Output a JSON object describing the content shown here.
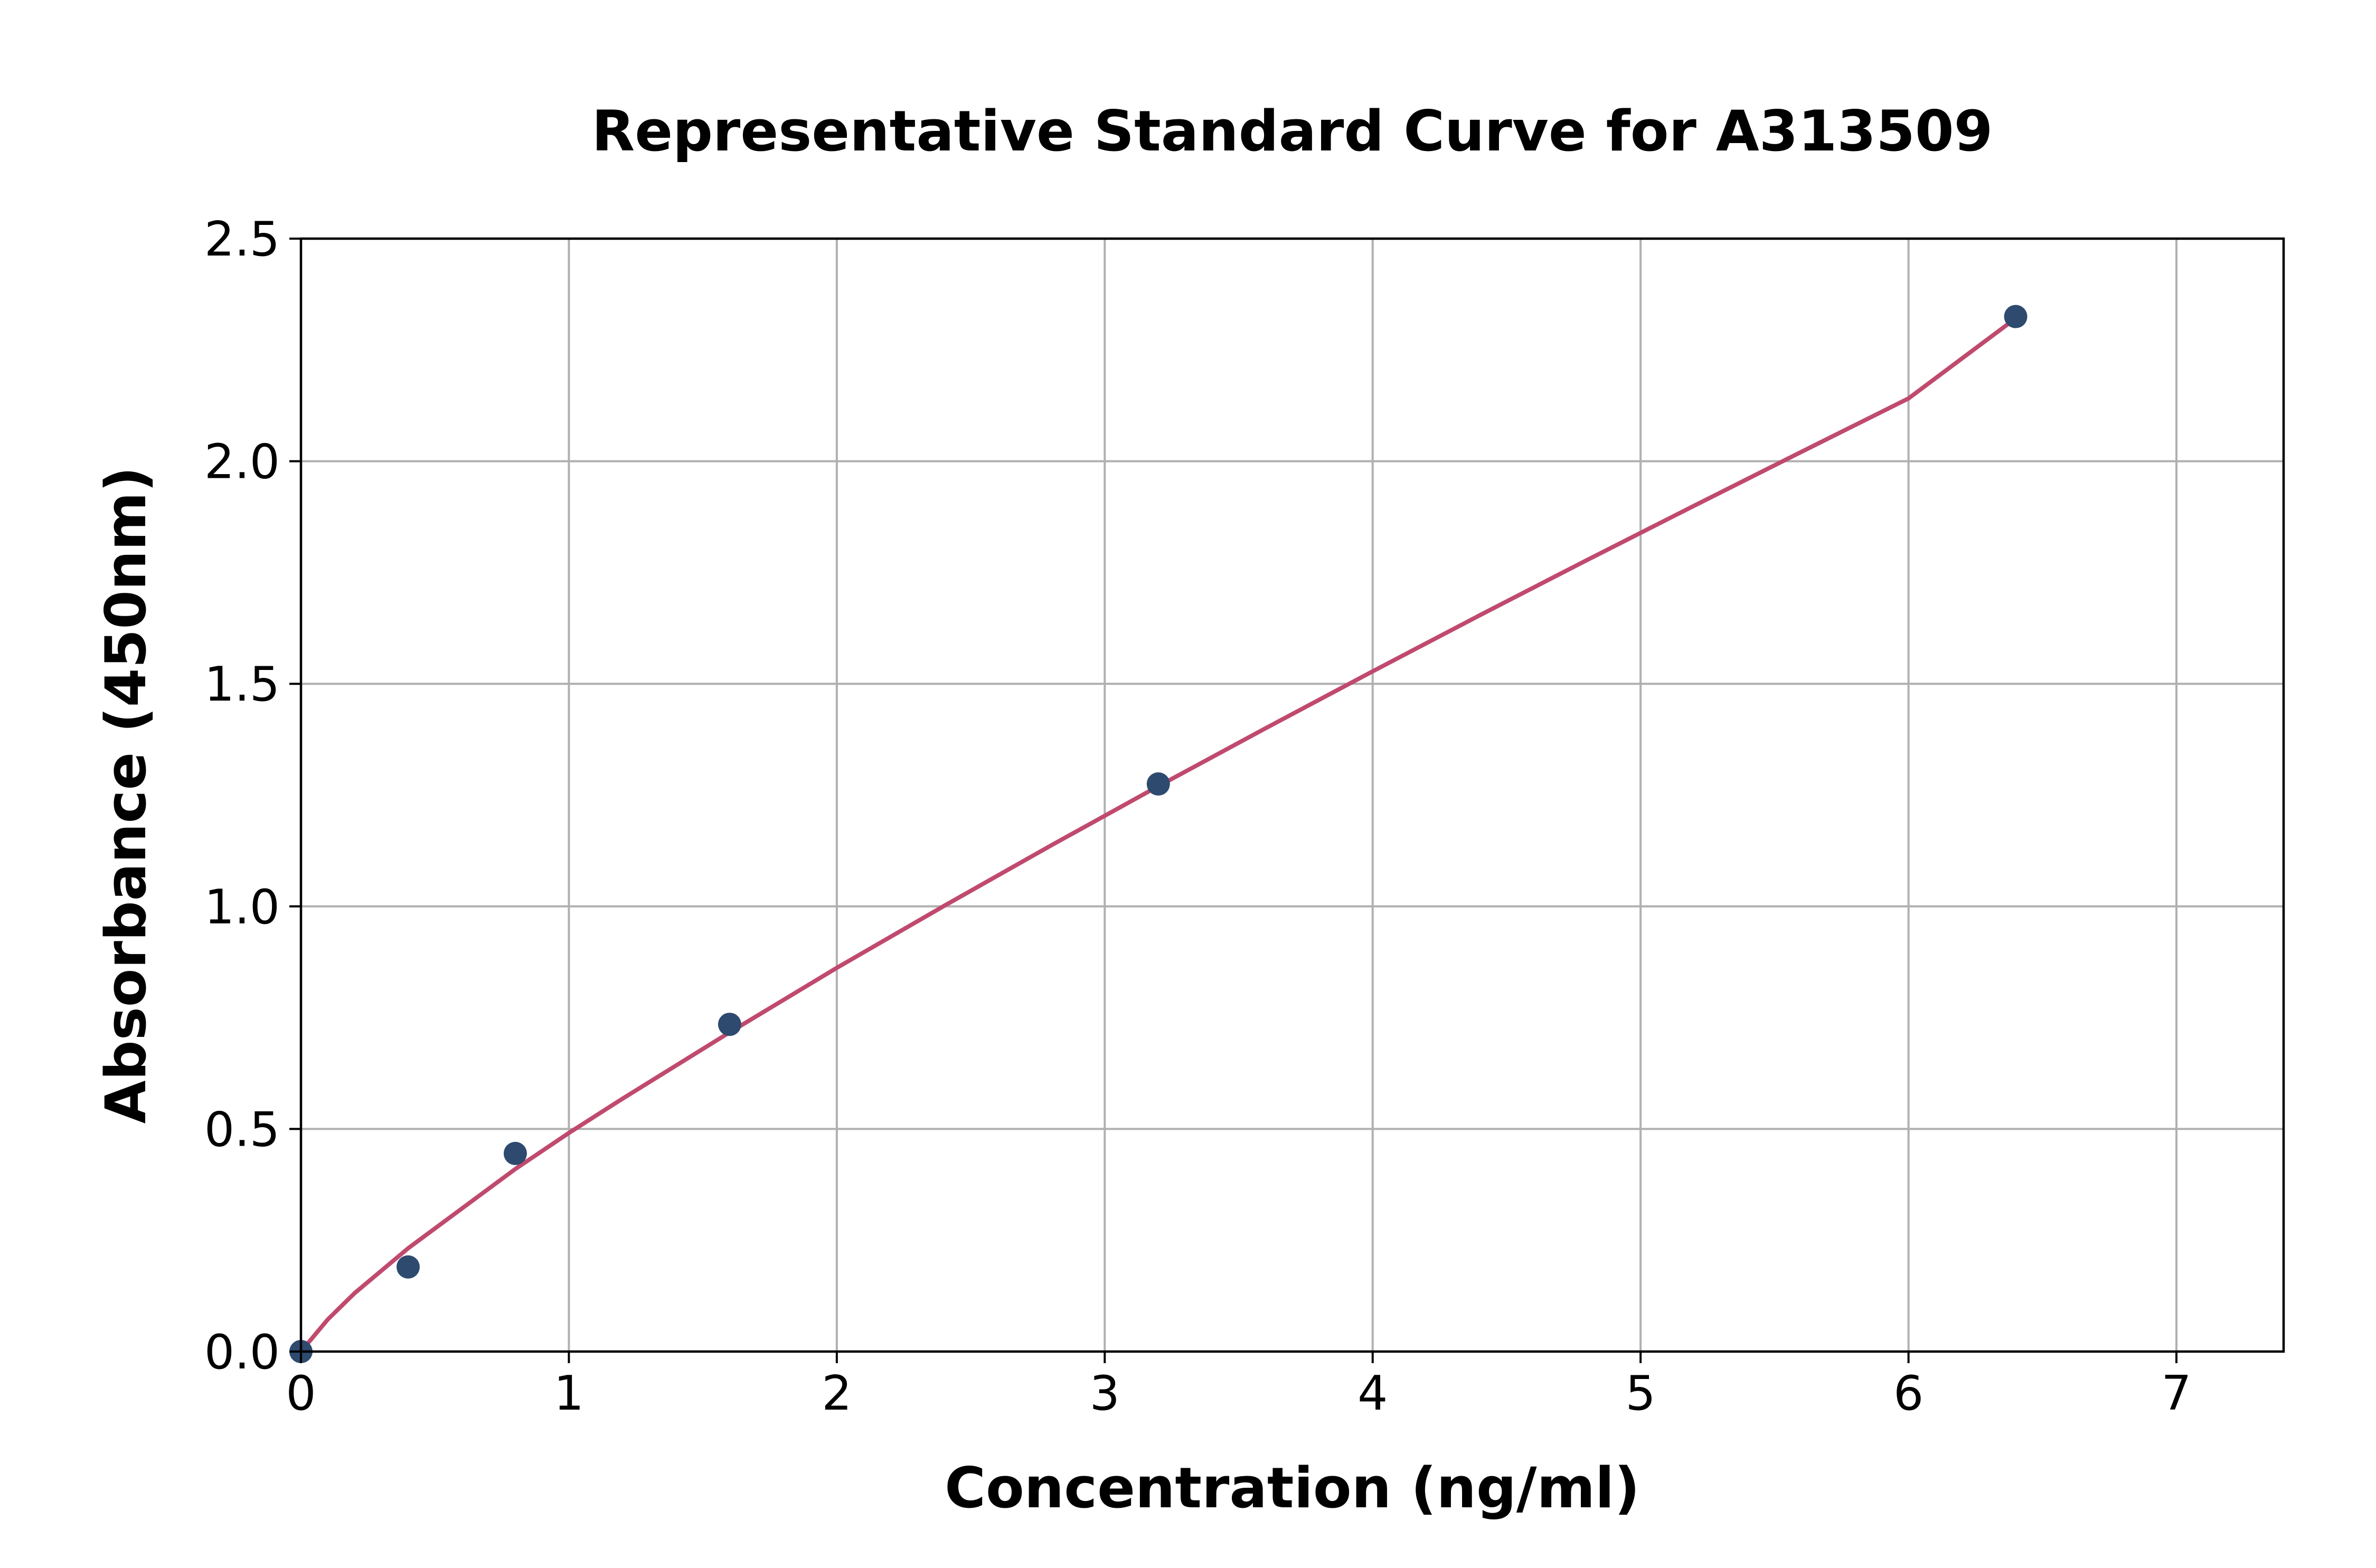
{
  "chart_data": {
    "type": "scatter",
    "title": "Representative Standard Curve for A313509",
    "xlabel": "Concentration (ng/ml)",
    "ylabel": "Absorbance (450nm)",
    "xlim": [
      0,
      7.4
    ],
    "ylim": [
      0,
      2.5
    ],
    "xticks": [
      0,
      1,
      2,
      3,
      4,
      5,
      6,
      7
    ],
    "xtick_labels": [
      "0",
      "1",
      "2",
      "3",
      "4",
      "5",
      "6",
      "7"
    ],
    "yticks": [
      0,
      0.5,
      1.0,
      1.5,
      2.0,
      2.5
    ],
    "ytick_labels": [
      "0.0",
      "0.5",
      "1.0",
      "1.5",
      "2.0",
      "2.5"
    ],
    "grid": true,
    "series": [
      {
        "kind": "points",
        "x": [
          0,
          0.4,
          0.8,
          1.6,
          3.2,
          6.4
        ],
        "y": [
          0.0,
          0.19,
          0.445,
          0.735,
          1.275,
          2.325
        ],
        "color": "#2e4a6e"
      },
      {
        "kind": "fit",
        "x": [
          0,
          0.1,
          0.2,
          0.4,
          0.8,
          1.0,
          1.2,
          1.6,
          2.0,
          2.4,
          2.8,
          3.2,
          3.6,
          4.0,
          4.4,
          4.8,
          5.2,
          5.6,
          6.0,
          6.4
        ],
        "y": [
          0.0,
          0.072,
          0.131,
          0.232,
          0.41,
          0.491,
          0.568,
          0.717,
          0.862,
          1.001,
          1.137,
          1.27,
          1.4,
          1.528,
          1.654,
          1.778,
          1.9,
          2.021,
          2.141,
          2.321
        ],
        "color": "#c04a6e"
      }
    ]
  }
}
